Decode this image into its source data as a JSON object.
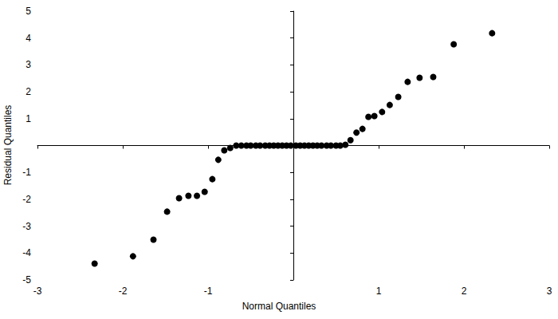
{
  "chart_data": {
    "type": "scatter",
    "x_label": "Normal Quantiles",
    "y_label": "Residual Quantiles",
    "x": [
      -2.33,
      -1.88,
      -1.64,
      -1.48,
      -1.34,
      -1.23,
      -1.13,
      -1.04,
      -0.95,
      -0.88,
      -0.81,
      -0.74,
      -0.67,
      -0.61,
      -0.55,
      -0.5,
      -0.44,
      -0.39,
      -0.33,
      -0.28,
      -0.23,
      -0.18,
      -0.13,
      -0.08,
      -0.03,
      0.03,
      0.08,
      0.13,
      0.18,
      0.23,
      0.28,
      0.33,
      0.39,
      0.44,
      0.5,
      0.55,
      0.61,
      0.67,
      0.74,
      0.81,
      0.88,
      0.95,
      1.04,
      1.13,
      1.23,
      1.34,
      1.48,
      1.64,
      1.88,
      2.33
    ],
    "values": [
      -4.39,
      -4.12,
      -3.5,
      -2.46,
      -1.96,
      -1.87,
      -1.87,
      -1.72,
      -1.25,
      -0.53,
      -0.18,
      -0.09,
      0,
      0,
      0,
      0,
      0,
      0,
      0,
      0,
      0,
      0,
      0,
      0,
      0,
      0,
      0,
      0,
      0,
      0,
      0,
      0,
      0,
      0,
      0,
      0,
      0.03,
      0.2,
      0.48,
      0.62,
      1.07,
      1.1,
      1.25,
      1.51,
      1.81,
      2.37,
      2.52,
      2.55,
      3.77,
      4.18
    ],
    "color": "#000000",
    "marker": "circle",
    "xlim": [
      -3,
      3
    ],
    "ylim": [
      -5,
      5
    ],
    "xticks": [
      -3,
      -2,
      -1,
      1,
      2,
      3
    ],
    "yticks": [
      -5,
      -4,
      -3,
      -2,
      -1,
      1,
      2,
      3,
      4,
      5
    ],
    "grid": false
  }
}
